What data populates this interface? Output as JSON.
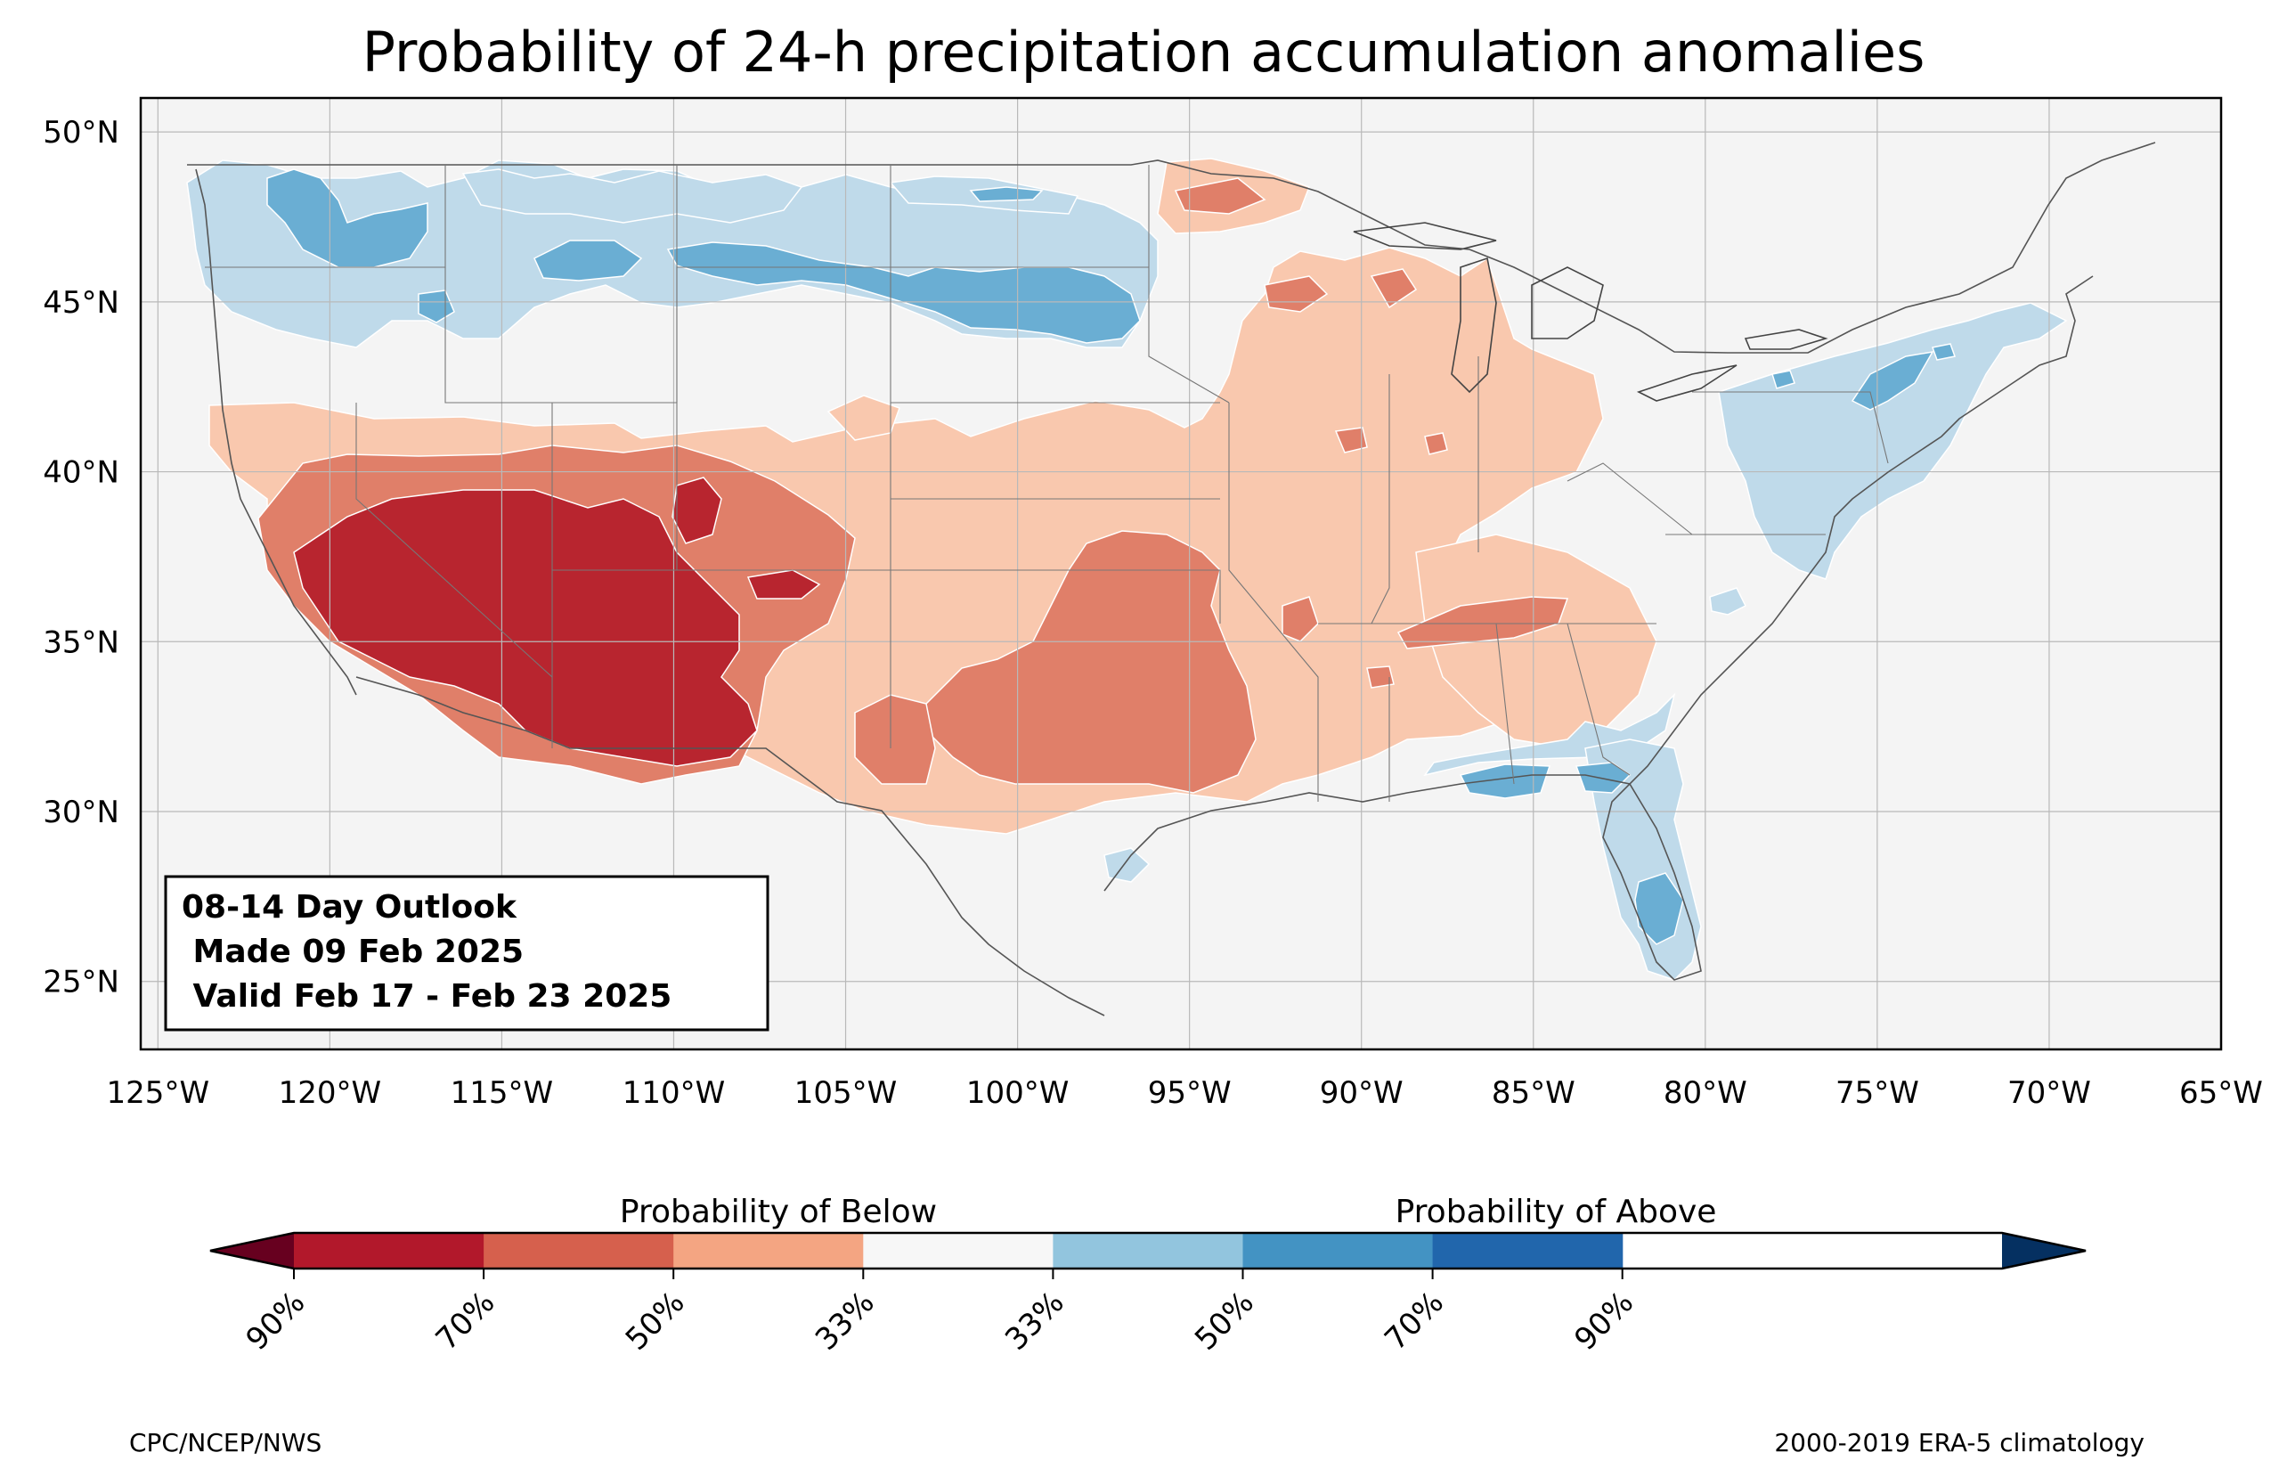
{
  "title": "Probability of 24-h precipitation accumulation anomalies",
  "info_box": {
    "line1": "08-14 Day Outlook",
    "line2": " Made 09 Feb 2025",
    "line3": " Valid Feb 17 - Feb 23 2025"
  },
  "axes": {
    "lat_ticks": [
      "50°N",
      "45°N",
      "40°N",
      "35°N",
      "30°N",
      "25°N"
    ],
    "lon_ticks": [
      "125°W",
      "120°W",
      "115°W",
      "110°W",
      "105°W",
      "100°W",
      "95°W",
      "90°W",
      "85°W",
      "80°W",
      "75°W",
      "70°W",
      "65°W"
    ],
    "lat_range": [
      23,
      51
    ],
    "lon_range": [
      -125.5,
      -65
    ],
    "grid": true
  },
  "colorbar": {
    "below_label": "Probability of Below",
    "above_label": "Probability of Above",
    "tick_labels": [
      "90%",
      "70%",
      "50%",
      "33%",
      "33%",
      "50%",
      "70%",
      "90%"
    ],
    "colors": [
      "#67001f",
      "#b2182b",
      "#d6604d",
      "#f4a582",
      "#f7f7f7",
      "#92c5de",
      "#4393c3",
      "#2166ac",
      "#053061"
    ],
    "fill_colors": {
      "below_33": "#f9c8ae",
      "below_50": "#e07f69",
      "below_70": "#b8252f",
      "above_33": "#bfdaea",
      "above_50": "#6aaed3",
      "land": "#f4f4f4"
    }
  },
  "credits": {
    "left": "CPC/NCEP/NWS",
    "right": "2000-2019 ERA-5 climatology"
  }
}
